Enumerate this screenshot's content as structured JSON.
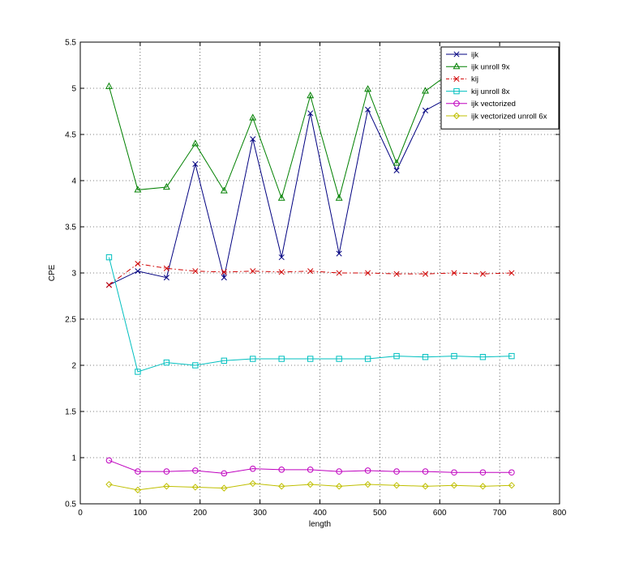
{
  "chart_data": {
    "type": "line",
    "title": "",
    "xlabel": "length",
    "ylabel": "CPE",
    "xlim": [
      0,
      800
    ],
    "ylim": [
      0.5,
      5.5
    ],
    "xticks": [
      "0",
      "100",
      "200",
      "300",
      "400",
      "500",
      "600",
      "700",
      "800"
    ],
    "yticks": [
      "0.5",
      "1",
      "1.5",
      "2",
      "2.5",
      "3",
      "3.5",
      "4",
      "4.5",
      "5",
      "5.5"
    ],
    "grid": true,
    "legend_position": "top-right",
    "x": [
      48,
      96,
      144,
      192,
      240,
      288,
      336,
      384,
      432,
      480,
      528,
      576,
      624,
      672,
      720
    ],
    "series": [
      {
        "name": "ijk",
        "color": "#000080",
        "marker": "x",
        "linestyle": "solid",
        "values": [
          2.87,
          3.02,
          2.95,
          4.18,
          2.95,
          4.45,
          3.17,
          4.73,
          3.21,
          4.77,
          4.11,
          4.76,
          4.93,
          5.1,
          5.2
        ]
      },
      {
        "name": "ijk unroll 9x",
        "color": "#008000",
        "marker": "triangle",
        "linestyle": "solid",
        "values": [
          5.02,
          3.9,
          3.93,
          4.4,
          3.89,
          4.68,
          3.81,
          4.92,
          3.81,
          4.99,
          4.19,
          4.97,
          5.2,
          5.3,
          5.4
        ]
      },
      {
        "name": "kij",
        "color": "#d00000",
        "marker": "x",
        "linestyle": "dashdot",
        "values": [
          2.87,
          3.1,
          3.05,
          3.02,
          3.01,
          3.02,
          3.01,
          3.02,
          3.0,
          3.0,
          2.99,
          2.99,
          3.0,
          2.99,
          3.0
        ]
      },
      {
        "name": "kij unroll 8x",
        "color": "#00bfbf",
        "marker": "square",
        "linestyle": "solid",
        "values": [
          3.17,
          1.93,
          2.03,
          2.0,
          2.05,
          2.07,
          2.07,
          2.07,
          2.07,
          2.07,
          2.1,
          2.09,
          2.1,
          2.09,
          2.1
        ]
      },
      {
        "name": "ijk vectorized",
        "color": "#bf00bf",
        "marker": "circle",
        "linestyle": "solid",
        "values": [
          0.97,
          0.85,
          0.85,
          0.86,
          0.83,
          0.88,
          0.87,
          0.87,
          0.85,
          0.86,
          0.85,
          0.85,
          0.84,
          0.84,
          0.84
        ]
      },
      {
        "name": "ijk vectorized unroll 6x",
        "color": "#bfbf00",
        "marker": "diamond",
        "linestyle": "solid",
        "values": [
          0.71,
          0.65,
          0.69,
          0.68,
          0.67,
          0.72,
          0.69,
          0.71,
          0.69,
          0.71,
          0.7,
          0.69,
          0.7,
          0.69,
          0.7
        ]
      }
    ]
  }
}
